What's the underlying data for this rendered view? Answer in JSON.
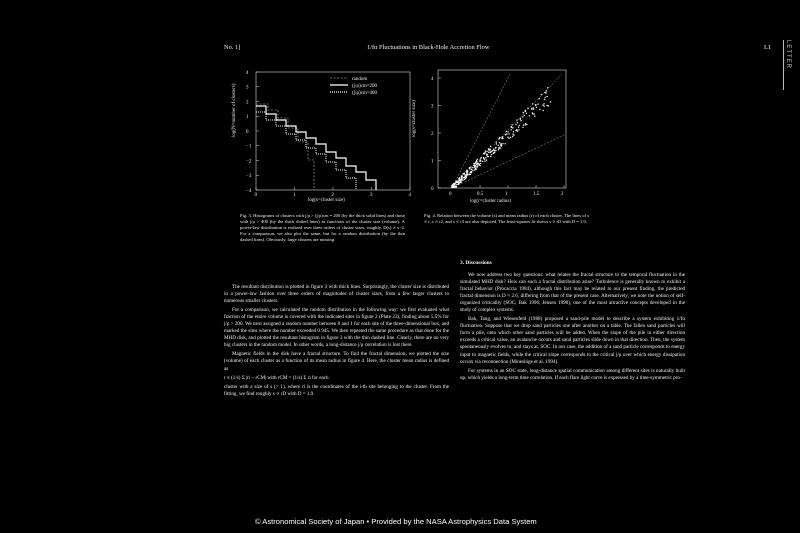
{
  "header": {
    "issue": "No. 1]",
    "title": "1/fα Fluctuations in Black-Hole Accretion Flow",
    "page": "L1",
    "side_label": "LETTER"
  },
  "fig3": {
    "legend": [
      "random",
      "(j/ρ)cm=200",
      "(j/ρ)cm=400"
    ],
    "ylabel": "log(N=number of clusters)",
    "xlabel": "log(s=cluster size)",
    "yticks": [
      "4",
      "3",
      "2",
      "1",
      "0",
      "−1",
      "−2",
      "−3",
      "−4"
    ],
    "xticks": [
      "0",
      "1",
      "2",
      "3",
      "4"
    ],
    "caption": "Fig. 3. Histograms of clusters with j/ρ > (j/ρ)cm = 200 (by the thick solid lines) and those with j/ρ > 400 (by the thick dotted lines) as functions of the cluster size (volume). A power-law distribution is realized over three orders of cluster sizes, roughly, D(s) ∝ s−2. For a comparison, we also plot the same, but for a random distribution (by the thin dashed lines). Obviously, large clusters are missing."
  },
  "fig4": {
    "ylabel": "log(s=cluster size)",
    "xlabel": "log(r=cluster radius)",
    "yticks": [
      "4",
      "3",
      "2",
      "1",
      "0"
    ],
    "xticks": [
      "0",
      "0.5",
      "1",
      "1.5",
      "2"
    ],
    "caption": "Fig. 4. Relation between the volume (s) and mean radius (r) of each cluster. The lines of s ∝ r, s ∝ r2, and s ∝ r3 are also depicted. The least-squares fit shows s ∝ rD with D = 1.9."
  },
  "left_col": [
    "The resultant distribution is plotted in figure 3 with thick lines. Surprisingly, the cluster size is distributed in a power-law fashion over three orders of magnitudes of cluster sizes, from a few larger clusters to numerous smaller clusters.",
    "For a comparison, we calculated the random distribution in the following way: we first evaluated what fraction of the entire volume is covered with the indicated sites in figure 2 (Plate 23), finding about 5.5% for j/ρ > 200. We next assigned a random number between 0 and 1 for each site of the three-dimensional box, and marked the sites where the number exceeded 0.945. We then repeated the same procedure as that done for the MHD disk, and plotted the resultant histogram in figure 3 with the thin dashed line. Clearly, there are no very big clusters in the random model. In other words, a long-distance j/ρ correlation is lost there.",
    "Magnetic fields in the disk have a fractal structure. To find the fractal dimension, we plotted the size (volume) of each cluster as a function of its mean radius in figure 4. Here, the cluster mean radius is defined as",
    "r ≡ (1/s) Σ |ri − rCM| with rCM = (1/s) Σ ri for each",
    "cluster with a size of s (> 1), where ri is the coordinates of the i-th site belonging to the cluster. From the fitting, we find roughly s ∝ rD with D = 1.9."
  ],
  "right_col": {
    "section": "3.   Discussions",
    "paragraphs": [
      "We now address two key questions: what relates the fractal structure to the temporal fluctuation in the simulated MHD disk? How can such a fractal distribution arise? Turbulence is generally known to exhibit a fractal behavior (Procaccia 1984), although this fact may be related to our present finding, the predicted fractal dimension is D ≈ 2.6, differing from that of the present case. Alternatively, we note the notion of self-organized criticality (SOC; Bak 1996; Jensen 1998), one of the most attractive concepts developed in the study of complex systems.",
      "Bak, Tang, and Wiesenfeld (1988) proposed a sand-pile model to describe a system exhibiting 1/fα fluctuation. Suppose that we drop sand particles one after another on a table. The fallen sand particles will form a pile, onto which other sand particles will be added. When the slope of the pile in either direction exceeds a critical value, an avalanche occurs and sand particles slide down in that direction. Then, the system spontaneously evolves to, and stays at, SOC. In our case, the addition of a sand particle corresponds to energy input to magnetic fields, while the critical slope corresponds to the critical j/ρ over which energy dissipation occurs via reconnection (Mineshige et al. 1994).",
      "For systems in an SOC state, long-distance spatial communication among different sites is naturally built up, which yields a long-term time correlation. If each flare light curve is expressed by a time-symmetric pro-"
    ]
  },
  "footer": "© Astronomical Society of Japan  •  Provided by the NASA Astrophysics Data System"
}
